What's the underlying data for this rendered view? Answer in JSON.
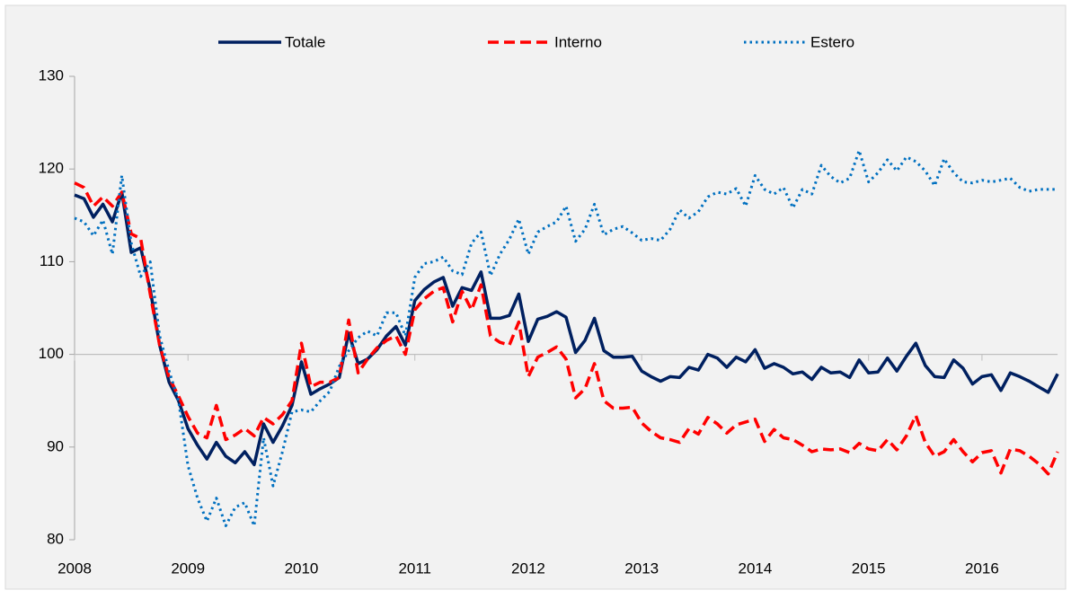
{
  "chart_data": {
    "type": "line",
    "categories": [
      "2008",
      null,
      null,
      null,
      null,
      null,
      null,
      null,
      null,
      null,
      null,
      null,
      "2009",
      null,
      null,
      null,
      null,
      null,
      null,
      null,
      null,
      null,
      null,
      null,
      "2010",
      null,
      null,
      null,
      null,
      null,
      null,
      null,
      null,
      null,
      null,
      null,
      "2011",
      null,
      null,
      null,
      null,
      null,
      null,
      null,
      null,
      null,
      null,
      null,
      "2012",
      null,
      null,
      null,
      null,
      null,
      null,
      null,
      null,
      null,
      null,
      null,
      "2013",
      null,
      null,
      null,
      null,
      null,
      null,
      null,
      null,
      null,
      null,
      null,
      "2014",
      null,
      null,
      null,
      null,
      null,
      null,
      null,
      null,
      null,
      null,
      null,
      "2015",
      null,
      null,
      null,
      null,
      null,
      null,
      null,
      null,
      null,
      null,
      null,
      "2016",
      null,
      null,
      null,
      null,
      null,
      null,
      null,
      null
    ],
    "ylim": [
      80,
      130
    ],
    "yticks": [
      80,
      90,
      100,
      110,
      120,
      130
    ],
    "reference_line": 100,
    "legend": "top",
    "series": [
      {
        "name": "Totale",
        "color": "#002060",
        "style": "solid",
        "values": [
          117.2,
          116.8,
          114.8,
          116.2,
          114.3,
          117.5,
          111,
          111.5,
          107,
          101,
          97,
          95,
          92,
          90.2,
          88.7,
          90.5,
          89,
          88.3,
          89.5,
          88.1,
          92.5,
          90.5,
          92.3,
          94.5,
          99.2,
          95.7,
          96.3,
          96.8,
          97.5,
          102.3,
          99,
          99.5,
          100.5,
          102,
          103,
          101,
          105.8,
          107,
          107.8,
          108.3,
          105.2,
          107.2,
          106.9,
          108.9,
          103.9,
          103.9,
          104.2,
          106.5,
          101.4,
          103.8,
          104.1,
          104.6,
          104,
          100.2,
          101.5,
          103.9,
          100.4,
          99.7,
          99.7,
          99.8,
          98.2,
          97.6,
          97.1,
          97.6,
          97.5,
          98.6,
          98.3,
          100,
          99.6,
          98.6,
          99.7,
          99.2,
          100.5,
          98.5,
          99,
          98.6,
          97.9,
          98.1,
          97.3,
          98.6,
          98,
          98.1,
          97.5,
          99.4,
          98,
          98.1,
          99.6,
          98.2,
          99.8,
          101.2,
          98.8,
          97.6,
          97.5,
          99.4,
          98.5,
          96.8,
          97.6,
          97.8,
          96.1,
          98,
          97.6,
          97.1,
          96.5,
          95.9,
          97.9
        ]
      },
      {
        "name": "Interno",
        "color": "#ff0000",
        "style": "dashed",
        "values": [
          118.5,
          118,
          116,
          117,
          116,
          117.5,
          113,
          112.5,
          106.5,
          101,
          97.5,
          95.5,
          93.3,
          91.5,
          91,
          94.5,
          90.8,
          91.3,
          92,
          91.2,
          93.2,
          92.5,
          93.5,
          95,
          101.2,
          96.5,
          97,
          97,
          97.5,
          103.7,
          98,
          99.5,
          100.7,
          101.5,
          102,
          100,
          104.8,
          106,
          106.8,
          107.2,
          103.5,
          106.8,
          104.8,
          107.5,
          102,
          101.3,
          101,
          103.5,
          97.6,
          99.7,
          100.2,
          100.8,
          99.5,
          95.3,
          96.3,
          99,
          95,
          94.2,
          94.2,
          94.3,
          92.6,
          91.7,
          91,
          90.8,
          90.5,
          92,
          91.4,
          93.2,
          92.5,
          91.5,
          92.4,
          92.7,
          93,
          90.6,
          91.9,
          91,
          90.8,
          90.2,
          89.5,
          89.8,
          89.7,
          89.8,
          89.4,
          90.4,
          89.8,
          89.6,
          90.8,
          89.7,
          91.2,
          93.4,
          90.5,
          89,
          89.5,
          90.8,
          89.5,
          88.4,
          89.4,
          89.6,
          87.2,
          89.8,
          89.6,
          89,
          88.2,
          87.1,
          89.5
        ]
      },
      {
        "name": "Estero",
        "color": "#0070c0",
        "style": "dotted",
        "values": [
          114.7,
          114.3,
          112.8,
          114.5,
          110.8,
          119.3,
          112,
          108.4,
          110,
          102,
          98.2,
          95,
          88,
          84.5,
          82,
          84.5,
          81.5,
          83.5,
          84,
          81.5,
          91,
          85.8,
          89.5,
          93.8,
          94,
          93.8,
          95,
          96,
          98.7,
          100.4,
          101.8,
          102.5,
          102,
          104.5,
          104.5,
          102,
          108.3,
          109.8,
          110,
          110.5,
          109,
          108.6,
          112,
          113.2,
          108.5,
          110.8,
          112.4,
          114.6,
          110.8,
          113.2,
          113.8,
          114.3,
          116,
          112.2,
          113.5,
          116.2,
          112.9,
          113.5,
          113.8,
          113.1,
          112.3,
          112.5,
          112.3,
          113.5,
          115.6,
          114.7,
          115.4,
          117,
          117.5,
          117.3,
          117.9,
          116,
          119.3,
          117.8,
          117.3,
          118,
          115.8,
          117.8,
          117.3,
          120.4,
          119.2,
          118.5,
          119,
          122,
          118.6,
          119.6,
          121,
          119.8,
          121.3,
          120.8,
          119.8,
          118.2,
          121.1,
          119.6,
          118.6,
          118.5,
          118.8,
          118.6,
          118.8,
          119,
          118,
          117.6,
          117.8,
          117.8,
          117.8
        ]
      }
    ]
  }
}
